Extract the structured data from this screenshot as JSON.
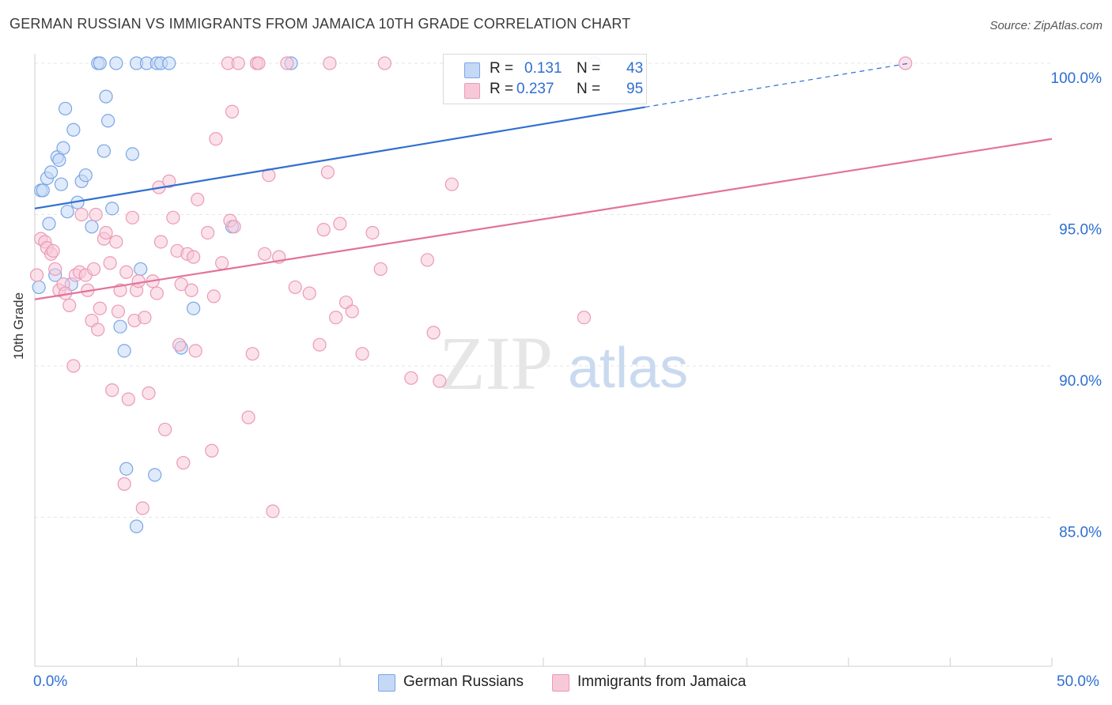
{
  "title": "GERMAN RUSSIAN VS IMMIGRANTS FROM JAMAICA 10TH GRADE CORRELATION CHART",
  "source": "Source: ZipAtlas.com",
  "legend": {
    "r_label": "R =",
    "n_label": "N =",
    "series1": {
      "r": "0.131",
      "n": "43"
    },
    "series2": {
      "r": "0.237",
      "n": "95"
    }
  },
  "x_axis": {
    "min_label": "0.0%",
    "max_label": "50.0%"
  },
  "watermark": {
    "zip": "ZIP",
    "atlas": "atlas"
  },
  "chart_data": {
    "type": "scatter",
    "title": "GERMAN RUSSIAN VS IMMIGRANTS FROM JAMAICA 10TH GRADE CORRELATION CHART",
    "xlabel": "",
    "ylabel": "10th Grade",
    "xlim": [
      0,
      50
    ],
    "ylim": [
      80,
      100.8
    ],
    "y_ticks": [
      {
        "value": 100,
        "label": "100.0%"
      },
      {
        "value": 95,
        "label": "95.0%"
      },
      {
        "value": 90,
        "label": "90.0%"
      },
      {
        "value": 85,
        "label": "85.0%"
      }
    ],
    "x_ticks": [
      0,
      5,
      10,
      15,
      20,
      25,
      30,
      35,
      40,
      45,
      50
    ],
    "grid": true,
    "legend_position": "top-center",
    "series": [
      {
        "name": "German Russians",
        "color": "#7aa6e6",
        "fill": "#c5d8f5",
        "line_color": "#2f6fd1",
        "r": 0.131,
        "n": 43,
        "trend": {
          "x0": 0,
          "y0": 95.2,
          "x1": 30,
          "y1": 98.55,
          "dash_to_x": 43,
          "dash_to_y": 100.0
        },
        "points": [
          [
            0.2,
            92.6
          ],
          [
            0.3,
            95.8
          ],
          [
            0.4,
            95.8
          ],
          [
            0.6,
            96.2
          ],
          [
            0.7,
            94.7
          ],
          [
            0.8,
            96.4
          ],
          [
            1.0,
            93.0
          ],
          [
            1.1,
            96.9
          ],
          [
            1.2,
            96.8
          ],
          [
            1.3,
            96.0
          ],
          [
            1.4,
            97.2
          ],
          [
            1.5,
            98.5
          ],
          [
            1.6,
            95.1
          ],
          [
            1.8,
            92.7
          ],
          [
            1.9,
            97.8
          ],
          [
            2.1,
            95.4
          ],
          [
            2.3,
            96.1
          ],
          [
            2.5,
            96.3
          ],
          [
            2.8,
            94.6
          ],
          [
            3.1,
            100.0
          ],
          [
            3.2,
            100.0
          ],
          [
            3.4,
            97.1
          ],
          [
            3.5,
            98.9
          ],
          [
            3.6,
            98.1
          ],
          [
            3.8,
            95.2
          ],
          [
            4.0,
            100.0
          ],
          [
            4.2,
            91.3
          ],
          [
            4.4,
            90.5
          ],
          [
            4.5,
            86.6
          ],
          [
            4.8,
            97.0
          ],
          [
            5.0,
            84.7
          ],
          [
            5.0,
            100.0
          ],
          [
            5.2,
            93.2
          ],
          [
            5.5,
            100.0
          ],
          [
            5.9,
            86.4
          ],
          [
            6.0,
            100.0
          ],
          [
            6.2,
            100.0
          ],
          [
            6.6,
            100.0
          ],
          [
            7.2,
            90.6
          ],
          [
            7.8,
            91.9
          ],
          [
            9.7,
            94.6
          ],
          [
            12.6,
            100.0
          ],
          [
            27.5,
            100.0
          ]
        ]
      },
      {
        "name": "Immigrants from Jamaica",
        "color": "#eb9ab6",
        "fill": "#f7c9d8",
        "line_color": "#e2739b",
        "r": 0.237,
        "n": 95,
        "trend": {
          "x0": 0,
          "y0": 92.2,
          "x1": 50,
          "y1": 97.5
        },
        "points": [
          [
            0.1,
            93.0
          ],
          [
            0.3,
            94.2
          ],
          [
            0.5,
            94.1
          ],
          [
            0.6,
            93.9
          ],
          [
            0.8,
            93.7
          ],
          [
            0.9,
            93.8
          ],
          [
            1.0,
            93.2
          ],
          [
            1.2,
            92.5
          ],
          [
            1.4,
            92.7
          ],
          [
            1.5,
            92.4
          ],
          [
            1.7,
            92.0
          ],
          [
            1.9,
            90.0
          ],
          [
            2.0,
            93.0
          ],
          [
            2.2,
            93.1
          ],
          [
            2.3,
            95.0
          ],
          [
            2.5,
            93.0
          ],
          [
            2.6,
            92.5
          ],
          [
            2.8,
            91.5
          ],
          [
            2.9,
            93.2
          ],
          [
            3.0,
            95.0
          ],
          [
            3.1,
            91.2
          ],
          [
            3.2,
            91.9
          ],
          [
            3.4,
            94.2
          ],
          [
            3.5,
            94.4
          ],
          [
            3.7,
            93.4
          ],
          [
            3.8,
            89.2
          ],
          [
            4.0,
            94.1
          ],
          [
            4.1,
            91.8
          ],
          [
            4.2,
            92.5
          ],
          [
            4.4,
            86.1
          ],
          [
            4.5,
            93.1
          ],
          [
            4.6,
            88.9
          ],
          [
            4.8,
            94.9
          ],
          [
            4.9,
            91.5
          ],
          [
            5.0,
            92.5
          ],
          [
            5.1,
            92.8
          ],
          [
            5.3,
            85.3
          ],
          [
            5.4,
            91.6
          ],
          [
            5.6,
            89.1
          ],
          [
            5.8,
            92.8
          ],
          [
            6.0,
            92.4
          ],
          [
            6.1,
            95.9
          ],
          [
            6.2,
            94.1
          ],
          [
            6.4,
            87.9
          ],
          [
            6.6,
            96.1
          ],
          [
            6.8,
            94.9
          ],
          [
            7.0,
            93.8
          ],
          [
            7.1,
            90.7
          ],
          [
            7.2,
            92.7
          ],
          [
            7.3,
            86.8
          ],
          [
            7.5,
            93.7
          ],
          [
            7.7,
            92.5
          ],
          [
            7.8,
            93.6
          ],
          [
            7.9,
            90.5
          ],
          [
            8.0,
            95.5
          ],
          [
            8.5,
            94.4
          ],
          [
            8.7,
            87.2
          ],
          [
            8.8,
            92.3
          ],
          [
            8.9,
            97.5
          ],
          [
            9.2,
            93.4
          ],
          [
            9.5,
            100.0
          ],
          [
            9.6,
            94.8
          ],
          [
            9.7,
            98.4
          ],
          [
            9.8,
            94.6
          ],
          [
            10.0,
            100.0
          ],
          [
            10.5,
            88.3
          ],
          [
            10.7,
            90.4
          ],
          [
            10.9,
            100.0
          ],
          [
            11.0,
            100.0
          ],
          [
            11.3,
            93.7
          ],
          [
            11.5,
            96.3
          ],
          [
            11.7,
            85.2
          ],
          [
            12.0,
            93.6
          ],
          [
            12.4,
            100.0
          ],
          [
            12.8,
            92.6
          ],
          [
            13.5,
            92.4
          ],
          [
            14.0,
            90.7
          ],
          [
            14.2,
            94.5
          ],
          [
            14.4,
            96.4
          ],
          [
            14.5,
            100.0
          ],
          [
            14.8,
            91.6
          ],
          [
            15.0,
            94.7
          ],
          [
            15.3,
            92.1
          ],
          [
            15.6,
            91.8
          ],
          [
            16.1,
            90.4
          ],
          [
            16.6,
            94.4
          ],
          [
            17.0,
            93.2
          ],
          [
            17.2,
            100.0
          ],
          [
            18.5,
            89.6
          ],
          [
            19.3,
            93.5
          ],
          [
            19.6,
            91.1
          ],
          [
            19.9,
            89.5
          ],
          [
            20.5,
            96.0
          ],
          [
            27.0,
            91.6
          ],
          [
            42.8,
            100.0
          ]
        ]
      }
    ]
  }
}
